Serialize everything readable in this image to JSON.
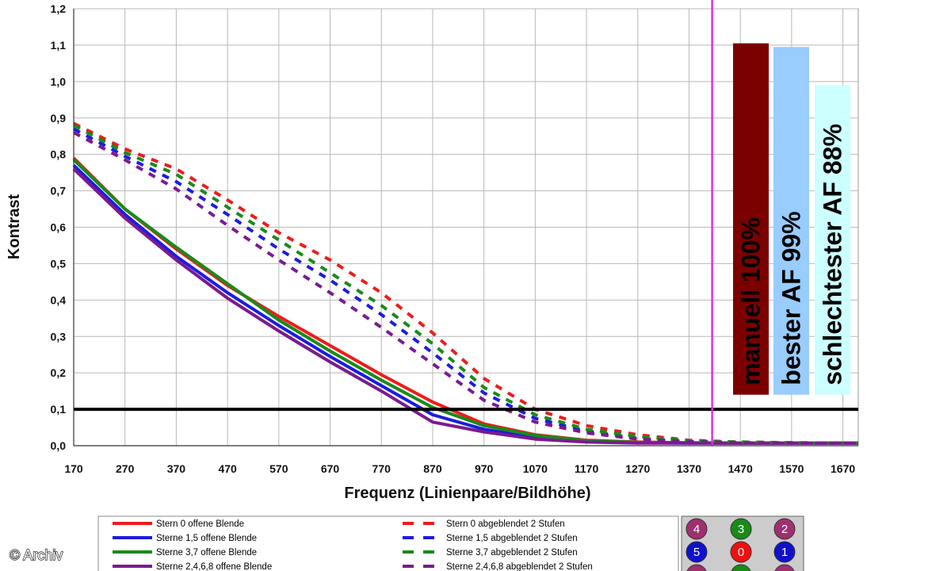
{
  "watermark": "© Archiv",
  "chart_data": {
    "type": "line",
    "title": "",
    "xlabel": "Frequenz (Linienpaare/Bildhöhe)",
    "ylabel": "Kontrast",
    "xlim": [
      170,
      1700
    ],
    "ylim": [
      0,
      1.2
    ],
    "x_ticks": [
      "170",
      "270",
      "370",
      "470",
      "570",
      "670",
      "770",
      "870",
      "970",
      "1070",
      "1170",
      "1270",
      "1370",
      "1470",
      "1570",
      "1670"
    ],
    "y_ticks": [
      "0,0",
      "0,1",
      "0,2",
      "0,3",
      "0,4",
      "0,5",
      "0,6",
      "0,7",
      "0,8",
      "0,9",
      "1,0",
      "1,1",
      "1,2"
    ],
    "grid": true,
    "reference_line": {
      "y": 0.1,
      "color": "#000000"
    },
    "vertical_line": {
      "x": 1415,
      "color": "#e030e0"
    },
    "series": [
      {
        "name": "Stern 0 offene Blende",
        "color": "#ee1c1c",
        "dash": false,
        "x": [
          170,
          270,
          370,
          470,
          570,
          670,
          770,
          870,
          970,
          1070,
          1170,
          1270,
          1370,
          1470,
          1570,
          1700
        ],
        "y": [
          0.79,
          0.65,
          0.54,
          0.44,
          0.355,
          0.275,
          0.195,
          0.12,
          0.06,
          0.03,
          0.015,
          0.01,
          0.008,
          0.007,
          0.007,
          0.007
        ]
      },
      {
        "name": "Sterne 1,5 offene Blende",
        "color": "#1c1ce0",
        "dash": false,
        "x": [
          170,
          270,
          370,
          470,
          570,
          670,
          770,
          870,
          970,
          1070,
          1170,
          1270,
          1370,
          1470,
          1570,
          1700
        ],
        "y": [
          0.77,
          0.635,
          0.52,
          0.42,
          0.33,
          0.245,
          0.165,
          0.085,
          0.045,
          0.022,
          0.012,
          0.008,
          0.007,
          0.007,
          0.007,
          0.007
        ]
      },
      {
        "name": "Sterne 3,7 offene Blende",
        "color": "#1a8a1a",
        "dash": false,
        "x": [
          170,
          270,
          370,
          470,
          570,
          670,
          770,
          870,
          970,
          1070,
          1170,
          1270,
          1370,
          1470,
          1570,
          1700
        ],
        "y": [
          0.785,
          0.65,
          0.545,
          0.445,
          0.345,
          0.26,
          0.18,
          0.105,
          0.055,
          0.028,
          0.014,
          0.009,
          0.008,
          0.007,
          0.007,
          0.007
        ]
      },
      {
        "name": "Sterne 2,4,6,8 offene Blende",
        "color": "#7b1a90",
        "dash": false,
        "x": [
          170,
          270,
          370,
          470,
          570,
          670,
          770,
          870,
          970,
          1070,
          1170,
          1270,
          1370,
          1470,
          1570,
          1700
        ],
        "y": [
          0.76,
          0.625,
          0.51,
          0.405,
          0.315,
          0.23,
          0.15,
          0.065,
          0.038,
          0.018,
          0.01,
          0.007,
          0.007,
          0.007,
          0.007,
          0.007
        ]
      },
      {
        "name": "Stern 0 abgeblendet 2 Stufen",
        "color": "#ee1c1c",
        "dash": true,
        "x": [
          170,
          270,
          370,
          470,
          570,
          670,
          770,
          870,
          970,
          1070,
          1170,
          1270,
          1370,
          1470,
          1570,
          1700
        ],
        "y": [
          0.885,
          0.815,
          0.76,
          0.675,
          0.585,
          0.51,
          0.42,
          0.31,
          0.185,
          0.1,
          0.055,
          0.03,
          0.015,
          0.01,
          0.008,
          0.007
        ]
      },
      {
        "name": "Sterne 1,5 abgeblendet 2 Stufen",
        "color": "#1c1ce0",
        "dash": true,
        "x": [
          170,
          270,
          370,
          470,
          570,
          670,
          770,
          870,
          970,
          1070,
          1170,
          1270,
          1370,
          1470,
          1570,
          1700
        ],
        "y": [
          0.87,
          0.795,
          0.725,
          0.635,
          0.54,
          0.455,
          0.36,
          0.255,
          0.145,
          0.075,
          0.04,
          0.02,
          0.012,
          0.009,
          0.008,
          0.007
        ]
      },
      {
        "name": "Sterne 3,7 abgeblendet 2 Stufen",
        "color": "#1a8a1a",
        "dash": true,
        "x": [
          170,
          270,
          370,
          470,
          570,
          670,
          770,
          870,
          970,
          1070,
          1170,
          1270,
          1370,
          1470,
          1570,
          1700
        ],
        "y": [
          0.88,
          0.805,
          0.745,
          0.655,
          0.565,
          0.475,
          0.385,
          0.28,
          0.16,
          0.085,
          0.045,
          0.025,
          0.014,
          0.01,
          0.008,
          0.007
        ]
      },
      {
        "name": "Sterne 2,4,6,8 abgeblendet 2 Stufen",
        "color": "#7b1a90",
        "dash": true,
        "x": [
          170,
          270,
          370,
          470,
          570,
          670,
          770,
          870,
          970,
          1070,
          1170,
          1270,
          1370,
          1470,
          1570,
          1700
        ],
        "y": [
          0.86,
          0.785,
          0.705,
          0.605,
          0.51,
          0.42,
          0.325,
          0.225,
          0.125,
          0.065,
          0.035,
          0.018,
          0.011,
          0.008,
          0.007,
          0.007
        ]
      }
    ],
    "bars": [
      {
        "label": "manuell 100%",
        "value": 1.105,
        "color": "#7b0000"
      },
      {
        "label": "bester AF 99%",
        "value": 1.095,
        "color": "#99ccff"
      },
      {
        "label": "schlechtester AF 88%",
        "value": 0.99,
        "color": "#ccffff"
      }
    ],
    "bar_base": 0.14,
    "star_grid": {
      "rows": [
        [
          {
            "label": "4",
            "color": "#9e3070"
          },
          {
            "label": "3",
            "color": "#1a8a1a"
          },
          {
            "label": "2",
            "color": "#9e3070"
          }
        ],
        [
          {
            "label": "5",
            "color": "#1010cc"
          },
          {
            "label": "0",
            "color": "#ee1010"
          },
          {
            "label": "1",
            "color": "#1010cc"
          }
        ],
        [
          {
            "label": "",
            "color": "#9e3070"
          },
          {
            "label": "",
            "color": "#1a8a1a"
          },
          {
            "label": "",
            "color": "#9e3070"
          }
        ]
      ]
    }
  }
}
